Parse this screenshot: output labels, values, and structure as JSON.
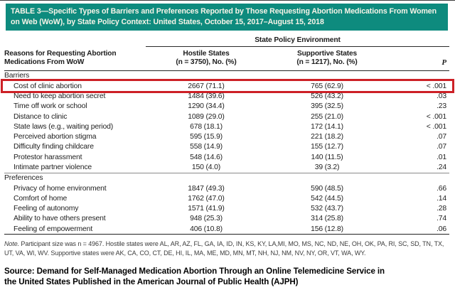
{
  "colors": {
    "header_teal": "#0e8b7e",
    "highlight_red": "#cd2026",
    "title_text": "#f7f4e8"
  },
  "title": "TABLE 3—Specific Types of Barriers and Preferences Reported by Those Requesting Abortion Medications From Women on Web (WoW), by State Policy Context: United States, October 15, 2017–August 15, 2018",
  "header": {
    "spanner": "State Policy Environment",
    "reasons_line1": "Reasons for Requesting Abortion",
    "reasons_line2": "Medications From WoW",
    "hostile_line1": "Hostile States",
    "hostile_line2": "(n = 3750), No. (%)",
    "supportive_line1": "Supportive States",
    "supportive_line2": "(n = 1217), No. (%)",
    "p_label": "P"
  },
  "table": {
    "sections": [
      {
        "label": "Barriers",
        "rows": [
          {
            "label": "Cost of clinic abortion",
            "hostile": "2667 (71.1)",
            "supportive": "765 (62.9)",
            "p": "< .001",
            "highlighted": true
          },
          {
            "label": "Need to keep abortion secret",
            "hostile": "1484 (39.6)",
            "supportive": "526 (43.2)",
            "p": ".03"
          },
          {
            "label": "Time off work or school",
            "hostile": "1290 (34.4)",
            "supportive": "395 (32.5)",
            "p": ".23"
          },
          {
            "label": "Distance to clinic",
            "hostile": "1089 (29.0)",
            "supportive": "255 (21.0)",
            "p": "< .001"
          },
          {
            "label": "State laws (e.g., waiting period)",
            "hostile": "678 (18.1)",
            "supportive": "172 (14.1)",
            "p": "< .001"
          },
          {
            "label": "Perceived abortion stigma",
            "hostile": "595 (15.9)",
            "supportive": "221 (18.2)",
            "p": ".07"
          },
          {
            "label": "Difficulty finding childcare",
            "hostile": "558 (14.9)",
            "supportive": "155 (12.7)",
            "p": ".07"
          },
          {
            "label": "Protestor harassment",
            "hostile": "548 (14.6)",
            "supportive": "140 (11.5)",
            "p": ".01"
          },
          {
            "label": "Intimate partner violence",
            "hostile": "150 (4.0)",
            "supportive": "39 (3.2)",
            "p": ".24"
          }
        ]
      },
      {
        "label": "Preferences",
        "rows": [
          {
            "label": "Privacy of home environment",
            "hostile": "1847 (49.3)",
            "supportive": "590 (48.5)",
            "p": ".66"
          },
          {
            "label": "Comfort of home",
            "hostile": "1762 (47.0)",
            "supportive": "542 (44.5)",
            "p": ".14"
          },
          {
            "label": "Feeling of autonomy",
            "hostile": "1571 (41.9)",
            "supportive": "532 (43.7)",
            "p": ".28"
          },
          {
            "label": "Ability to have others present",
            "hostile": "948 (25.3)",
            "supportive": "314 (25.8)",
            "p": ".74"
          },
          {
            "label": "Feeling of empowerment",
            "hostile": "406 (10.8)",
            "supportive": "156 (12.8)",
            "p": ".06"
          }
        ]
      }
    ]
  },
  "note": {
    "prefix": "Note.",
    "text": " Participant size was n = 4967. Hostile states were AL, AR, AZ, FL, GA, IA, ID, IN, KS, KY, LA,MI, MO, MS, NC, ND, NE, OH, OK, PA, RI, SC, SD, TN, TX, UT, VA, WI, WV. Supportive states were AK, CA, CO, CT, DE, HI, IL, MA, ME, MD, MN, MT, NH, NJ, NM, NV, NY, OR, VT, WA, WY."
  },
  "source": "Source: Demand for Self-Managed Medication Abortion Through an Online Telemedicine Service in the United States Published in the American Journal of Public Health (AJPH)"
}
